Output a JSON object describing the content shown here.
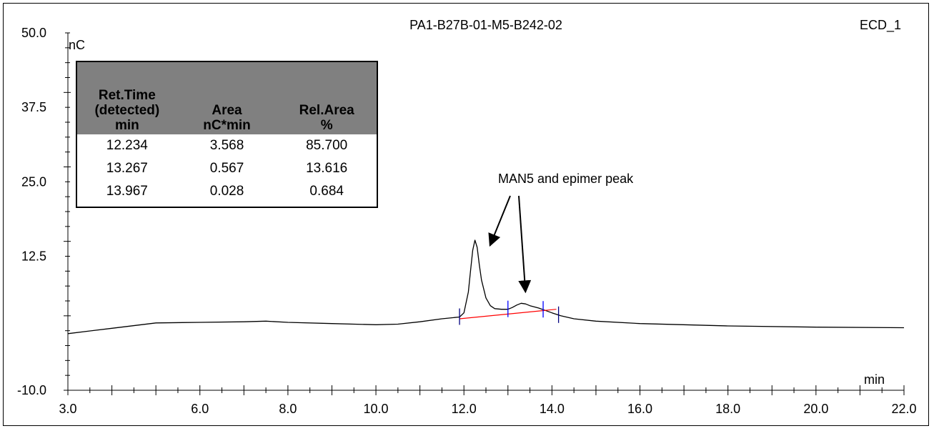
{
  "chart_data": {
    "type": "line",
    "title": "PA1-B27B-01-M5-B242-02",
    "channel": "ECD_1",
    "xlabel": "min",
    "ylabel": "nC",
    "xlim": [
      3.0,
      22.0
    ],
    "ylim": [
      -10.0,
      50.0
    ],
    "x_ticks": [
      3.0,
      6.0,
      8.0,
      10.0,
      12.0,
      14.0,
      16.0,
      18.0,
      20.0,
      22.0
    ],
    "x_tick_labels": [
      "3.0",
      "6.0",
      "8.0",
      "10.0",
      "12.0",
      "14.0",
      "16.0",
      "18.0",
      "20.0",
      "22.0"
    ],
    "y_ticks": [
      -10.0,
      12.5,
      25.0,
      37.5,
      50.0
    ],
    "y_tick_labels": [
      "-10.0",
      "12.5",
      "25.0",
      "37.5",
      "50.0"
    ],
    "series": [
      {
        "color": "#000000",
        "x": [
          3.0,
          4.0,
          5.0,
          6.0,
          7.0,
          7.5,
          8.0,
          9.0,
          10.0,
          10.5,
          11.0,
          11.5,
          11.9,
          12.0,
          12.1,
          12.15,
          12.2,
          12.25,
          12.3,
          12.35,
          12.4,
          12.5,
          12.6,
          12.7,
          12.85,
          13.0,
          13.1,
          13.2,
          13.3,
          13.4,
          13.5,
          13.7,
          13.85,
          14.0,
          14.2,
          14.5,
          15.0,
          16.0,
          18.0,
          20.0,
          22.0
        ],
        "y": [
          -0.5,
          0.4,
          1.3,
          1.4,
          1.5,
          1.6,
          1.4,
          1.2,
          1.0,
          1.1,
          1.5,
          2.0,
          2.3,
          3.0,
          6.5,
          10.0,
          13.5,
          15.2,
          14.0,
          11.0,
          8.5,
          5.5,
          4.2,
          3.7,
          3.6,
          3.6,
          3.9,
          4.3,
          4.6,
          4.5,
          4.2,
          3.8,
          3.4,
          3.0,
          2.5,
          2.0,
          1.6,
          1.2,
          0.8,
          0.6,
          0.5
        ]
      },
      {
        "color": "#ff0000",
        "x": [
          11.9,
          14.1
        ],
        "y": [
          2.0,
          3.6
        ]
      }
    ],
    "peak_delimiters": [
      {
        "x": 11.9,
        "color": "#000080"
      },
      {
        "x": 13.0,
        "color": "#0000ff"
      },
      {
        "x": 13.8,
        "color": "#0000ff"
      },
      {
        "x": 14.15,
        "color": "#000080"
      }
    ],
    "annotation": "MAN5 and epimer peak",
    "annotation_targets": [
      12.3,
      13.35
    ],
    "grid": false,
    "legend": "none"
  },
  "table": {
    "headers": [
      "Ret.Time\n(detected)\nmin",
      "Area\nnC*min",
      "Rel.Area\n%"
    ],
    "rows": [
      [
        "12.234",
        "3.568",
        "85.700"
      ],
      [
        "13.267",
        "0.567",
        "13.616"
      ],
      [
        "13.967",
        "0.028",
        "0.684"
      ]
    ]
  }
}
